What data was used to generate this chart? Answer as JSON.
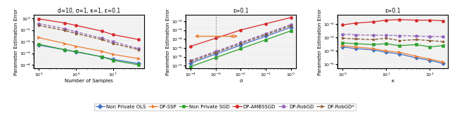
{
  "title1": "d=10, σ=1, κ=1, ε=0.1",
  "title2": "ε=0.1",
  "title3": "ε=0.1",
  "xlabel1": "Number of Samples",
  "xlabel2": "σ",
  "xlabel3": "κ",
  "ylabel": "Parameter Estimation Error",
  "colors": {
    "NonPrivOLS": "#4472c4",
    "DPSSP": "#ed7d31",
    "NonPrivSGD": "#2ca02c",
    "DPAMBSSGD": "#d62728",
    "DPRobGD": "#9467bd",
    "DPRobGDs": "#7f4f28"
  },
  "plot1": {
    "x": [
      100000.0,
      500000.0,
      1000000.0,
      5000000.0,
      10000000.0,
      50000000.0
    ],
    "NonPrivOLS": [
      0.005,
      0.002,
      0.0013,
      0.0005,
      0.0003,
      0.00013
    ],
    "DPSSP": [
      0.022,
      0.007,
      0.004,
      0.0015,
      0.0008,
      0.00035
    ],
    "NonPrivSGD": [
      0.006,
      0.002,
      0.0014,
      0.0005,
      0.00025,
      0.0001
    ],
    "DPAMBSSGD": [
      0.9,
      0.4,
      0.25,
      0.08,
      0.04,
      0.015
    ],
    "DPRobGD": [
      0.35,
      0.13,
      0.07,
      0.02,
      0.01,
      0.0025
    ],
    "DPRobGDs": [
      0.25,
      0.09,
      0.05,
      0.015,
      0.007,
      0.002
    ]
  },
  "plot2": {
    "x": [
      0.0001,
      0.001,
      0.01,
      0.1,
      1.0
    ],
    "NonPrivOLS": [
      2e-07,
      2e-06,
      2e-05,
      0.0002,
      0.002
    ],
    "DPSSP": [
      0.0002,
      0.0002,
      0.0002,
      0.0003,
      0.0005
    ],
    "NonPrivSGD": [
      8e-08,
      8e-07,
      8e-06,
      8e-05,
      0.0008
    ],
    "DPAMBSSGD": [
      1.5e-05,
      0.00012,
      0.001,
      0.005,
      0.025
    ],
    "DPRobGD": [
      4e-07,
      4e-06,
      4e-05,
      0.0004,
      0.004
    ],
    "DPRobGDs": [
      3e-07,
      3e-06,
      3e-05,
      0.0003,
      0.003
    ]
  },
  "plot3": {
    "x": [
      1,
      2,
      5,
      10,
      20,
      50,
      100,
      200
    ],
    "NonPrivOLS": [
      0.0002,
      0.00015,
      0.00012,
      8e-05,
      6e-05,
      3e-05,
      2e-05,
      1.2e-05
    ],
    "DPSSP": [
      0.00025,
      0.0002,
      0.00015,
      0.0001,
      8e-05,
      4e-05,
      2.5e-05,
      1.5e-05
    ],
    "NonPrivSGD": [
      0.0004,
      0.00035,
      0.0003,
      0.00035,
      0.00025,
      0.0003,
      0.0002,
      0.00025
    ],
    "DPAMBSSGD": [
      0.009,
      0.012,
      0.015,
      0.02,
      0.022,
      0.02,
      0.02,
      0.018
    ],
    "DPRobGD": [
      0.0018,
      0.0016,
      0.0015,
      0.0015,
      0.0014,
      0.0013,
      0.0012,
      0.0012
    ],
    "DPRobGDs": [
      0.0009,
      0.0008,
      0.0007,
      0.0009,
      0.0006,
      0.0007,
      0.0006,
      0.0005
    ]
  },
  "legend": [
    {
      "label": "Non Private OLS",
      "color": "#4472c4",
      "marker": "D",
      "ls": "-"
    },
    {
      "label": "DP-SSP",
      "color": "#ed7d31",
      "marker": ">",
      "ls": "-"
    },
    {
      "label": "Non Private SGD",
      "color": "#2ca02c",
      "marker": "s",
      "ls": "-"
    },
    {
      "label": "DP-AMBSSGD",
      "color": "#d62728",
      "marker": "o",
      "ls": "-"
    },
    {
      "label": "DP-RobGD",
      "color": "#9467bd",
      "marker": "o",
      "ls": "--"
    },
    {
      "label": "DP-RobGD*",
      "color": "#7f4f28",
      "marker": "*",
      "ls": "--"
    }
  ]
}
